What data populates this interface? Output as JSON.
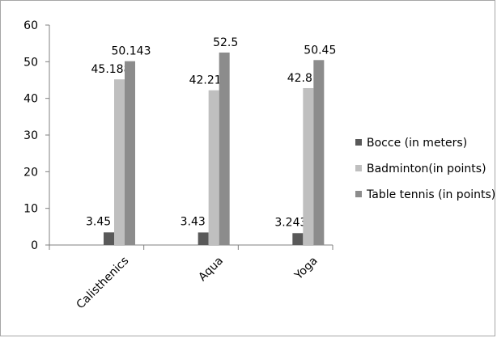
{
  "chart_data": {
    "type": "bar",
    "categories": [
      "Calisthenics",
      "Aqua",
      "Yoga"
    ],
    "series": [
      {
        "name": "Bocce (in meters)",
        "values": [
          3.45,
          3.43,
          3.243
        ],
        "labels": [
          "3.45",
          "3.43",
          "3.243"
        ],
        "color": "#595959"
      },
      {
        "name": "Badminton(in points)",
        "values": [
          45.188,
          42.21,
          42.8
        ],
        "labels": [
          "45.188",
          "42.21",
          "42.8"
        ],
        "color": "#bfbfbf"
      },
      {
        "name": "Table tennis (in points)",
        "values": [
          50.143,
          52.5,
          50.45
        ],
        "labels": [
          "50.143",
          "52.5",
          "50.45"
        ],
        "color": "#8c8c8c"
      }
    ],
    "ylim": [
      0,
      60
    ],
    "yticks": [
      0,
      10,
      20,
      30,
      40,
      50,
      60
    ],
    "grid": false,
    "legend_position": "right"
  }
}
